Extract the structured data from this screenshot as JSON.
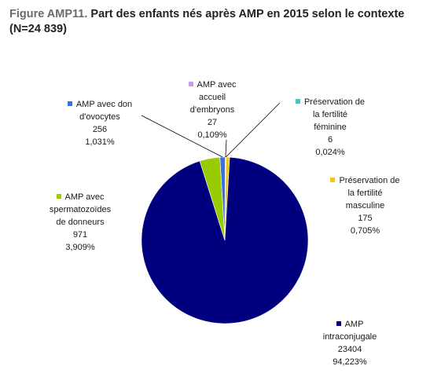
{
  "title": {
    "prefix": "Figure AMP11.",
    "text": " Part des enfants nés après AMP en 2015 selon le contexte",
    "line2": "(N=24 839)"
  },
  "chart_data": {
    "type": "pie",
    "slices": [
      {
        "label_lines": [
          "AMP avec don",
          "d'ovocytes"
        ],
        "value": 256,
        "value_label": "256",
        "pct_label": "1,031%",
        "color": "#3b6fe8"
      },
      {
        "label_lines": [
          "AMP avec",
          "accueil",
          "d'embryons"
        ],
        "value": 27,
        "value_label": "27",
        "pct_label": "0,109%",
        "color": "#c79cf0"
      },
      {
        "label_lines": [
          "Préservation de",
          "la fertilité",
          "féminine"
        ],
        "value": 6,
        "value_label": "6",
        "pct_label": "0,024%",
        "color": "#3ec6c9"
      },
      {
        "label_lines": [
          "Préservation de",
          "la fertilité",
          "masculine"
        ],
        "value": 175,
        "value_label": "175",
        "pct_label": "0,705%",
        "color": "#f2c616"
      },
      {
        "label_lines": [
          "AMP",
          "intraconjugale"
        ],
        "value": 23404,
        "value_label": "23404",
        "pct_label": "94,223%",
        "color": "#00007f"
      },
      {
        "label_lines": [
          "AMP avec",
          "spermatozoïdes",
          "de donneurs"
        ],
        "value": 971,
        "value_label": "971",
        "pct_label": "3,909%",
        "color": "#99cc00"
      }
    ]
  }
}
